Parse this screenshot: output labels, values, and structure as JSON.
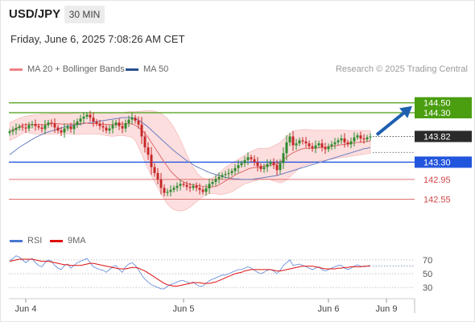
{
  "header": {
    "symbol": "USD/JPY",
    "timeframe": "30 MIN"
  },
  "datetime": "Friday, June 6, 2025 7:08:26 AM CET",
  "legend": {
    "ma20": {
      "label": "MA 20 + Bollinger Bands",
      "color": "#f08080"
    },
    "ma50": {
      "label": "MA 50",
      "color": "#2b4f8f"
    },
    "rsi": {
      "label": "RSI",
      "color": "#4a78d0"
    },
    "rsi_ma": {
      "label": "9MA",
      "color": "#e01010"
    }
  },
  "credit": "Research © 2025 Trading Central",
  "colors": {
    "up": "#2e8b2e",
    "down": "#c62828",
    "target": "#4a9e10",
    "pivot": "#2255dd",
    "support": "#e07070",
    "arrow": "#1f5fb0"
  },
  "chart_data": [
    {
      "type": "candlestick",
      "title": "USD/JPY 30 MIN",
      "x_tick_labels": [
        "Jun 4",
        "Jun 5",
        "Jun 6",
        "Jun 9"
      ],
      "x_tick_index": [
        5,
        54,
        99,
        117
      ],
      "ylim": [
        142.2,
        145.0
      ],
      "levels": [
        {
          "value": 144.5,
          "label": "144.50",
          "kind": "target"
        },
        {
          "value": 144.3,
          "label": "144.30",
          "kind": "target"
        },
        {
          "value": 143.3,
          "label": "143.30",
          "kind": "pivot"
        },
        {
          "value": 142.95,
          "label": "142.95",
          "kind": "support"
        },
        {
          "value": 142.55,
          "label": "142.55",
          "kind": "support"
        }
      ],
      "last_price": {
        "value": 143.82,
        "label": "143.82"
      },
      "projection": {
        "from": 143.82,
        "to": 144.5,
        "direction": "up"
      },
      "close": [
        143.92,
        143.95,
        143.99,
        144.02,
        144.0,
        143.98,
        144.05,
        144.07,
        144.03,
        144.0,
        143.97,
        144.05,
        144.1,
        144.08,
        144.0,
        143.94,
        143.9,
        143.98,
        144.02,
        143.97,
        144.05,
        144.12,
        144.18,
        144.22,
        144.26,
        144.2,
        144.12,
        144.08,
        144.03,
        144.0,
        143.94,
        143.98,
        144.05,
        144.1,
        144.03,
        143.98,
        144.09,
        144.16,
        144.2,
        144.14,
        144.06,
        143.82,
        143.6,
        143.45,
        143.2,
        143.08,
        142.95,
        142.78,
        142.68,
        142.7,
        142.74,
        142.78,
        142.82,
        142.86,
        142.84,
        142.8,
        142.78,
        142.82,
        142.78,
        142.74,
        142.7,
        142.77,
        142.86,
        142.9,
        142.96,
        143.0,
        143.04,
        143.06,
        143.08,
        143.12,
        143.18,
        143.24,
        143.28,
        143.34,
        143.4,
        143.36,
        143.3,
        143.22,
        143.16,
        143.2,
        143.26,
        143.3,
        143.24,
        143.14,
        143.28,
        143.48,
        143.7,
        143.82,
        143.64,
        143.68,
        143.74,
        143.72,
        143.68,
        143.62,
        143.58,
        143.64,
        143.68,
        143.6,
        143.56,
        143.62,
        143.66,
        143.7,
        143.74,
        143.78,
        143.7,
        143.66,
        143.72,
        143.8,
        143.84,
        143.78,
        143.76,
        143.8,
        143.82
      ],
      "ma20": [
        143.92,
        143.95,
        143.98,
        144.02,
        144.05,
        144.06,
        144.06,
        144.06,
        144.06,
        144.06,
        144.06,
        144.06,
        144.07,
        144.08,
        144.08,
        144.08,
        144.07,
        144.07,
        144.07,
        144.07,
        144.07,
        144.08,
        144.08,
        144.09,
        144.09,
        144.08,
        144.08,
        144.08,
        144.07,
        144.07,
        144.06,
        144.06,
        144.06,
        144.07,
        144.07,
        144.07,
        144.07,
        144.08,
        144.07,
        144.05,
        144.0,
        143.95,
        143.88,
        143.8,
        143.7,
        143.6,
        143.5,
        143.4,
        143.3,
        143.21,
        143.12,
        143.05,
        142.99,
        142.94,
        142.9,
        142.87,
        142.85,
        142.84,
        142.83,
        142.82,
        142.81,
        142.8,
        142.8,
        142.8,
        142.81,
        142.84,
        142.88,
        142.92,
        142.96,
        143.0,
        143.04,
        143.07,
        143.1,
        143.13,
        143.16,
        143.18,
        143.19,
        143.2,
        143.21,
        143.22,
        143.23,
        143.24,
        143.25,
        143.26,
        143.3,
        143.35,
        143.4,
        143.45,
        143.49,
        143.52,
        143.55,
        143.57,
        143.58,
        143.58,
        143.58,
        143.58,
        143.59,
        143.6,
        143.6,
        143.61,
        143.62,
        143.63,
        143.64,
        143.65,
        143.66,
        143.67,
        143.68,
        143.69,
        143.7,
        143.7,
        143.71,
        143.72,
        143.73
      ],
      "bb_upper": [
        144.1,
        144.13,
        144.16,
        144.19,
        144.21,
        144.23,
        144.24,
        144.25,
        144.26,
        144.26,
        144.27,
        144.27,
        144.27,
        144.28,
        144.28,
        144.28,
        144.28,
        144.28,
        144.28,
        144.28,
        144.29,
        144.29,
        144.3,
        144.3,
        144.3,
        144.3,
        144.3,
        144.3,
        144.3,
        144.3,
        144.3,
        144.3,
        144.3,
        144.3,
        144.3,
        144.3,
        144.31,
        144.32,
        144.32,
        144.32,
        144.33,
        144.33,
        144.34,
        144.34,
        144.34,
        144.33,
        144.31,
        144.28,
        144.24,
        144.18,
        144.1,
        144.0,
        143.88,
        143.75,
        143.6,
        143.45,
        143.32,
        143.2,
        143.1,
        143.02,
        142.98,
        142.96,
        142.96,
        142.98,
        143.02,
        143.08,
        143.14,
        143.2,
        143.24,
        143.28,
        143.32,
        143.36,
        143.4,
        143.44,
        143.48,
        143.52,
        143.55,
        143.57,
        143.58,
        143.58,
        143.58,
        143.6,
        143.63,
        143.66,
        143.7,
        143.76,
        143.82,
        143.88,
        143.92,
        143.94,
        143.95,
        143.96,
        143.96,
        143.96,
        143.95,
        143.95,
        143.95,
        143.95,
        143.95,
        143.95,
        143.95,
        143.95,
        143.95,
        143.95,
        143.95,
        143.94,
        143.94,
        143.94,
        143.94,
        143.94,
        143.94,
        143.94,
        143.94
      ],
      "bb_lower": [
        143.74,
        143.77,
        143.8,
        143.84,
        143.88,
        143.9,
        143.89,
        143.88,
        143.87,
        143.86,
        143.86,
        143.86,
        143.86,
        143.87,
        143.87,
        143.87,
        143.87,
        143.87,
        143.87,
        143.87,
        143.86,
        143.86,
        143.86,
        143.87,
        143.87,
        143.87,
        143.87,
        143.87,
        143.86,
        143.85,
        143.84,
        143.83,
        143.82,
        143.83,
        143.84,
        143.84,
        143.83,
        143.82,
        143.8,
        143.74,
        143.6,
        143.46,
        143.3,
        143.16,
        143.02,
        142.9,
        142.78,
        142.66,
        142.55,
        142.45,
        142.38,
        142.34,
        142.32,
        142.31,
        142.32,
        142.35,
        142.39,
        142.44,
        142.5,
        142.55,
        142.6,
        142.64,
        142.66,
        142.67,
        142.66,
        142.65,
        142.65,
        142.66,
        142.68,
        142.7,
        142.74,
        142.78,
        142.82,
        142.86,
        142.88,
        142.9,
        142.92,
        142.94,
        142.96,
        142.96,
        142.96,
        142.94,
        142.92,
        142.9,
        142.88,
        142.9,
        142.94,
        143.0,
        143.06,
        143.12,
        143.18,
        143.22,
        143.24,
        143.26,
        143.28,
        143.3,
        143.32,
        143.33,
        143.34,
        143.35,
        143.36,
        143.37,
        143.38,
        143.39,
        143.4,
        143.41,
        143.42,
        143.43,
        143.44,
        143.45,
        143.46,
        143.47,
        143.48
      ],
      "ma50": [
        143.45,
        143.5,
        143.55,
        143.6,
        143.64,
        143.68,
        143.72,
        143.76,
        143.8,
        143.83,
        143.86,
        143.89,
        143.91,
        143.93,
        143.95,
        143.97,
        143.99,
        144.01,
        144.03,
        144.04,
        144.05,
        144.06,
        144.07,
        144.08,
        144.09,
        144.1,
        144.11,
        144.12,
        144.13,
        144.14,
        144.15,
        144.16,
        144.17,
        144.18,
        144.19,
        144.2,
        144.2,
        144.2,
        144.2,
        144.18,
        144.15,
        144.11,
        144.06,
        144.01,
        143.95,
        143.89,
        143.83,
        143.77,
        143.71,
        143.65,
        143.59,
        143.53,
        143.48,
        143.43,
        143.38,
        143.33,
        143.29,
        143.25,
        143.21,
        143.18,
        143.15,
        143.12,
        143.09,
        143.07,
        143.05,
        143.03,
        143.01,
        142.99,
        142.98,
        142.97,
        142.96,
        142.96,
        142.95,
        142.95,
        142.95,
        142.95,
        142.96,
        142.97,
        142.98,
        142.99,
        143.0,
        143.01,
        143.02,
        143.03,
        143.05,
        143.07,
        143.09,
        143.11,
        143.13,
        143.15,
        143.17,
        143.19,
        143.21,
        143.23,
        143.25,
        143.27,
        143.29,
        143.31,
        143.33,
        143.35,
        143.37,
        143.39,
        143.41,
        143.43,
        143.45,
        143.47,
        143.49,
        143.51,
        143.53,
        143.55,
        143.57,
        143.58,
        143.6
      ]
    },
    {
      "type": "line",
      "title": "RSI",
      "ylim": [
        15,
        85
      ],
      "y_ticks": [
        30,
        50,
        70
      ],
      "y_tick_labels": [
        "30",
        "50",
        "70"
      ],
      "series": [
        {
          "name": "RSI",
          "values": [
            68,
            72,
            76,
            74,
            70,
            66,
            70,
            72,
            66,
            62,
            60,
            66,
            70,
            68,
            62,
            58,
            56,
            62,
            64,
            58,
            62,
            66,
            68,
            70,
            72,
            66,
            60,
            58,
            56,
            55,
            52,
            56,
            60,
            62,
            56,
            52,
            60,
            64,
            66,
            62,
            56,
            48,
            42,
            38,
            34,
            32,
            30,
            28,
            28,
            32,
            34,
            36,
            38,
            40,
            40,
            38,
            36,
            38,
            34,
            32,
            32,
            36,
            40,
            42,
            44,
            46,
            48,
            48,
            50,
            52,
            54,
            56,
            56,
            58,
            60,
            58,
            55,
            52,
            50,
            52,
            55,
            56,
            54,
            50,
            55,
            62,
            66,
            70,
            62,
            63,
            64,
            62,
            60,
            58,
            56,
            58,
            60,
            56,
            54,
            56,
            58,
            60,
            62,
            62,
            58,
            56,
            58,
            61,
            63,
            61,
            60,
            61,
            62
          ]
        },
        {
          "name": "9MA",
          "values": [
            68,
            69,
            70,
            71,
            71,
            71,
            71,
            71,
            70,
            69,
            68,
            68,
            68,
            67,
            66,
            65,
            64,
            63,
            63,
            62,
            62,
            62,
            62,
            63,
            64,
            65,
            65,
            64,
            63,
            62,
            61,
            60,
            59,
            58,
            57,
            57,
            57,
            58,
            59,
            59,
            58,
            56,
            54,
            51,
            48,
            45,
            42,
            39,
            36,
            34,
            33,
            32,
            32,
            33,
            34,
            35,
            36,
            37,
            37,
            37,
            36,
            36,
            36,
            37,
            38,
            40,
            42,
            44,
            46,
            48,
            50,
            51,
            52,
            54,
            55,
            56,
            56,
            56,
            56,
            56,
            56,
            56,
            55,
            54,
            54,
            55,
            56,
            57,
            58,
            59,
            60,
            61,
            61,
            61,
            61,
            60,
            59,
            58,
            57,
            57,
            57,
            57,
            58,
            58,
            59,
            59,
            60,
            60,
            60,
            60,
            61,
            61,
            61
          ]
        }
      ]
    }
  ]
}
